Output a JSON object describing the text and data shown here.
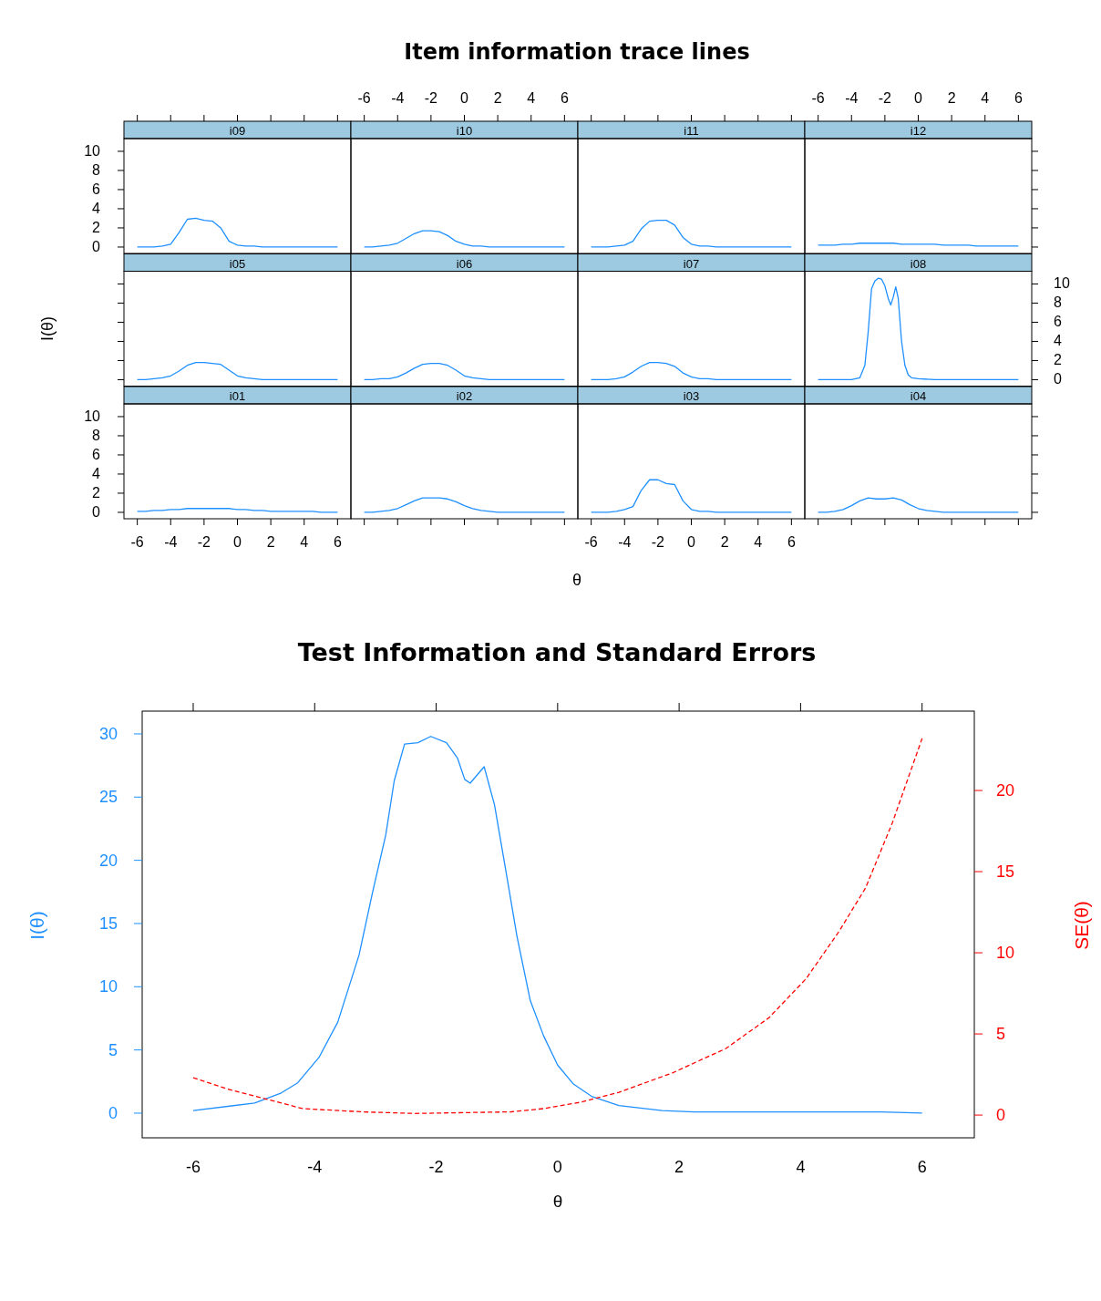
{
  "chart_data": [
    {
      "type": "line",
      "annotations": [
        "Item information trace lines"
      ],
      "subtitle": "i09",
      "xlim": [
        -6.8,
        6.8
      ],
      "ylim": [
        -0.67,
        11.33
      ],
      "xticks": [
        -6,
        -4,
        -2,
        0,
        2,
        4,
        6
      ],
      "yticks": [
        0,
        2,
        4,
        6,
        8,
        10
      ],
      "tick_labels": "y",
      "x": [
        -6,
        -5.5,
        -5,
        -4.5,
        -4,
        -3.5,
        -3,
        -2.5,
        -2,
        -1.5,
        -1,
        -0.5,
        0,
        0.5,
        1,
        1.5,
        2,
        2.5,
        3,
        3.5,
        4,
        4.5,
        5,
        5.5,
        6
      ],
      "series": [
        {
          "color": "#1e90ff",
          "values": [
            0,
            0,
            0,
            0.1,
            0.3,
            1.5,
            2.9,
            3.0,
            2.8,
            2.7,
            2.0,
            0.6,
            0.2,
            0.1,
            0.1,
            0,
            0,
            0,
            0,
            0,
            0,
            0,
            0,
            0,
            0
          ]
        }
      ]
    },
    {
      "type": "line",
      "subtitle": "i10",
      "xlim": [
        -6.8,
        6.8
      ],
      "ylim": [
        -0.67,
        11.33
      ],
      "xticks": [
        -6,
        -4,
        -2,
        0,
        2,
        4,
        6
      ],
      "yticks": [
        0,
        2,
        4,
        6,
        8,
        10
      ],
      "tick_labels": "x",
      "x": [
        -6,
        -5.5,
        -5,
        -4.5,
        -4,
        -3.5,
        -3,
        -2.5,
        -2,
        -1.5,
        -1,
        -0.5,
        0,
        0.5,
        1,
        1.5,
        2,
        2.5,
        3,
        3.5,
        4,
        4.5,
        5,
        5.5,
        6
      ],
      "series": [
        {
          "color": "#1e90ff",
          "values": [
            0,
            0,
            0.1,
            0.2,
            0.4,
            0.9,
            1.4,
            1.7,
            1.7,
            1.6,
            1.2,
            0.6,
            0.3,
            0.1,
            0.1,
            0,
            0,
            0,
            0,
            0,
            0,
            0,
            0,
            0,
            0
          ]
        }
      ]
    },
    {
      "type": "line",
      "subtitle": "i11",
      "xlim": [
        -6.8,
        6.8
      ],
      "ylim": [
        -0.67,
        11.33
      ],
      "xticks": [
        -6,
        -4,
        -2,
        0,
        2,
        4,
        6
      ],
      "yticks": [
        0,
        2,
        4,
        6,
        8,
        10
      ],
      "tick_labels": false,
      "x": [
        -6,
        -5.5,
        -5,
        -4.5,
        -4,
        -3.5,
        -3,
        -2.5,
        -2,
        -1.5,
        -1,
        -0.5,
        0,
        0.5,
        1,
        1.5,
        2,
        2.5,
        3,
        3.5,
        4,
        4.5,
        5,
        5.5,
        6
      ],
      "series": [
        {
          "color": "#1e90ff",
          "values": [
            0,
            0,
            0,
            0.1,
            0.2,
            0.6,
            1.9,
            2.7,
            2.8,
            2.8,
            2.3,
            1.0,
            0.3,
            0.1,
            0.1,
            0,
            0,
            0,
            0,
            0,
            0,
            0,
            0,
            0,
            0
          ]
        }
      ]
    },
    {
      "type": "line",
      "subtitle": "i12",
      "xlim": [
        -6.8,
        6.8
      ],
      "ylim": [
        -0.67,
        11.33
      ],
      "xticks": [
        -6,
        -4,
        -2,
        0,
        2,
        4,
        6
      ],
      "yticks": [
        0,
        2,
        4,
        6,
        8,
        10
      ],
      "tick_labels": "x",
      "x": [
        -6,
        -5.5,
        -5,
        -4.5,
        -4,
        -3.5,
        -3,
        -2.5,
        -2,
        -1.5,
        -1,
        -0.5,
        0,
        0.5,
        1,
        1.5,
        2,
        2.5,
        3,
        3.5,
        4,
        4.5,
        5,
        5.5,
        6
      ],
      "series": [
        {
          "color": "#1e90ff",
          "values": [
            0.2,
            0.2,
            0.2,
            0.3,
            0.3,
            0.4,
            0.4,
            0.4,
            0.4,
            0.4,
            0.3,
            0.3,
            0.3,
            0.3,
            0.3,
            0.2,
            0.2,
            0.2,
            0.2,
            0.1,
            0.1,
            0.1,
            0.1,
            0.1,
            0.1
          ]
        }
      ]
    },
    {
      "type": "line",
      "subtitle": "i05",
      "ylabel": "I(θ)",
      "xlim": [
        -6.8,
        6.8
      ],
      "ylim": [
        -0.67,
        11.33
      ],
      "xticks": [
        -6,
        -4,
        -2,
        0,
        2,
        4,
        6
      ],
      "yticks": [
        0,
        2,
        4,
        6,
        8,
        10
      ],
      "tick_labels": false,
      "x": [
        -6,
        -5.5,
        -5,
        -4.5,
        -4,
        -3.5,
        -3,
        -2.5,
        -2,
        -1.5,
        -1,
        -0.5,
        0,
        0.5,
        1,
        1.5,
        2,
        2.5,
        3,
        3.5,
        4,
        4.5,
        5,
        5.5,
        6
      ],
      "series": [
        {
          "color": "#1e90ff",
          "values": [
            0,
            0,
            0.1,
            0.2,
            0.4,
            0.9,
            1.5,
            1.8,
            1.8,
            1.7,
            1.6,
            1.0,
            0.4,
            0.2,
            0.1,
            0,
            0,
            0,
            0,
            0,
            0,
            0,
            0,
            0,
            0
          ]
        }
      ]
    },
    {
      "type": "line",
      "subtitle": "i06",
      "xlim": [
        -6.8,
        6.8
      ],
      "ylim": [
        -0.67,
        11.33
      ],
      "xticks": [
        -6,
        -4,
        -2,
        0,
        2,
        4,
        6
      ],
      "yticks": [
        0,
        2,
        4,
        6,
        8,
        10
      ],
      "tick_labels": false,
      "x": [
        -6,
        -5.5,
        -5,
        -4.5,
        -4,
        -3.5,
        -3,
        -2.5,
        -2,
        -1.5,
        -1,
        -0.5,
        0,
        0.5,
        1,
        1.5,
        2,
        2.5,
        3,
        3.5,
        4,
        4.5,
        5,
        5.5,
        6
      ],
      "series": [
        {
          "color": "#1e90ff",
          "values": [
            0,
            0,
            0.1,
            0.1,
            0.3,
            0.7,
            1.2,
            1.6,
            1.7,
            1.7,
            1.5,
            1.0,
            0.4,
            0.2,
            0.1,
            0,
            0,
            0,
            0,
            0,
            0,
            0,
            0,
            0,
            0
          ]
        }
      ]
    },
    {
      "type": "line",
      "subtitle": "i07",
      "xlim": [
        -6.8,
        6.8
      ],
      "ylim": [
        -0.67,
        11.33
      ],
      "xticks": [
        -6,
        -4,
        -2,
        0,
        2,
        4,
        6
      ],
      "yticks": [
        0,
        2,
        4,
        6,
        8,
        10
      ],
      "tick_labels": false,
      "x": [
        -6,
        -5.5,
        -5,
        -4.5,
        -4,
        -3.5,
        -3,
        -2.5,
        -2,
        -1.5,
        -1,
        -0.5,
        0,
        0.5,
        1,
        1.5,
        2,
        2.5,
        3,
        3.5,
        4,
        4.5,
        5,
        5.5,
        6
      ],
      "series": [
        {
          "color": "#1e90ff",
          "values": [
            0,
            0,
            0,
            0.1,
            0.3,
            0.8,
            1.4,
            1.8,
            1.8,
            1.7,
            1.4,
            0.7,
            0.3,
            0.1,
            0.1,
            0,
            0,
            0,
            0,
            0,
            0,
            0,
            0,
            0,
            0
          ]
        }
      ]
    },
    {
      "type": "line",
      "subtitle": "i08",
      "xlim": [
        -6.8,
        6.8
      ],
      "ylim": [
        -0.67,
        11.33
      ],
      "xticks": [
        -6,
        -4,
        -2,
        0,
        2,
        4,
        6
      ],
      "yticks": [
        0,
        2,
        4,
        6,
        8,
        10
      ],
      "tick_labels": "y",
      "x": [
        -6,
        -5,
        -4,
        -3.5,
        -3.2,
        -3,
        -2.8,
        -2.6,
        -2.4,
        -2.2,
        -2,
        -1.8,
        -1.65,
        -1.5,
        -1.35,
        -1.2,
        -1,
        -0.8,
        -0.6,
        -0.4,
        0,
        1,
        2,
        3,
        4,
        5,
        6
      ],
      "series": [
        {
          "color": "#1e90ff",
          "values": [
            0,
            0,
            0,
            0.2,
            1.5,
            5,
            9.5,
            10.3,
            10.6,
            10.5,
            9.8,
            8.5,
            7.8,
            8.6,
            9.7,
            8.5,
            4,
            1.5,
            0.5,
            0.2,
            0.1,
            0,
            0,
            0,
            0,
            0,
            0
          ]
        }
      ]
    },
    {
      "type": "line",
      "subtitle": "i01",
      "xlim": [
        -6.8,
        6.8
      ],
      "ylim": [
        -0.67,
        11.33
      ],
      "xticks": [
        -6,
        -4,
        -2,
        0,
        2,
        4,
        6
      ],
      "yticks": [
        0,
        2,
        4,
        6,
        8,
        10
      ],
      "x": [
        -6,
        -5.5,
        -5,
        -4.5,
        -4,
        -3.5,
        -3,
        -2.5,
        -2,
        -1.5,
        -1,
        -0.5,
        0,
        0.5,
        1,
        1.5,
        2,
        2.5,
        3,
        3.5,
        4,
        4.5,
        5,
        5.5,
        6
      ],
      "series": [
        {
          "color": "#1e90ff",
          "values": [
            0.1,
            0.1,
            0.2,
            0.2,
            0.3,
            0.3,
            0.4,
            0.4,
            0.4,
            0.4,
            0.4,
            0.4,
            0.3,
            0.3,
            0.2,
            0.2,
            0.1,
            0.1,
            0.1,
            0.1,
            0.1,
            0.1,
            0,
            0,
            0
          ]
        }
      ]
    },
    {
      "type": "line",
      "subtitle": "i02",
      "xlabel": "θ",
      "xlim": [
        -6.8,
        6.8
      ],
      "ylim": [
        -0.67,
        11.33
      ],
      "xticks": [
        -6,
        -4,
        -2,
        0,
        2,
        4,
        6
      ],
      "yticks": [
        0,
        2,
        4,
        6,
        8,
        10
      ],
      "tick_labels": false,
      "x": [
        -6,
        -5.5,
        -5,
        -4.5,
        -4,
        -3.5,
        -3,
        -2.5,
        -2,
        -1.5,
        -1,
        -0.5,
        0,
        0.5,
        1,
        1.5,
        2,
        2.5,
        3,
        3.5,
        4,
        4.5,
        5,
        5.5,
        6
      ],
      "series": [
        {
          "color": "#1e90ff",
          "values": [
            0,
            0,
            0.1,
            0.2,
            0.4,
            0.8,
            1.2,
            1.5,
            1.5,
            1.5,
            1.4,
            1.1,
            0.7,
            0.4,
            0.2,
            0.1,
            0,
            0,
            0,
            0,
            0,
            0,
            0,
            0,
            0
          ]
        }
      ]
    },
    {
      "type": "line",
      "subtitle": "i03",
      "xlim": [
        -6.8,
        6.8
      ],
      "ylim": [
        -0.67,
        11.33
      ],
      "xticks": [
        -6,
        -4,
        -2,
        0,
        2,
        4,
        6
      ],
      "yticks": [
        0,
        2,
        4,
        6,
        8,
        10
      ],
      "tick_labels": "x",
      "x": [
        -6,
        -5.5,
        -5,
        -4.5,
        -4,
        -3.5,
        -3,
        -2.5,
        -2,
        -1.5,
        -1,
        -0.5,
        0,
        0.5,
        1,
        1.5,
        2,
        2.5,
        3,
        3.5,
        4,
        4.5,
        5,
        5.5,
        6
      ],
      "series": [
        {
          "color": "#1e90ff",
          "values": [
            0,
            0,
            0,
            0.1,
            0.3,
            0.6,
            2.3,
            3.4,
            3.4,
            3.0,
            2.9,
            1.2,
            0.3,
            0.1,
            0.1,
            0,
            0,
            0,
            0,
            0,
            0,
            0,
            0,
            0,
            0
          ]
        }
      ]
    },
    {
      "type": "line",
      "subtitle": "i04",
      "xlim": [
        -6.8,
        6.8
      ],
      "ylim": [
        -0.67,
        11.33
      ],
      "xticks": [
        -6,
        -4,
        -2,
        0,
        2,
        4,
        6
      ],
      "yticks": [
        0,
        2,
        4,
        6,
        8,
        10
      ],
      "tick_labels": false,
      "x": [
        -6,
        -5.5,
        -5,
        -4.5,
        -4,
        -3.5,
        -3,
        -2.5,
        -2,
        -1.5,
        -1,
        -0.5,
        0,
        0.5,
        1,
        1.5,
        2,
        2.5,
        3,
        3.5,
        4,
        4.5,
        5,
        5.5,
        6
      ],
      "series": [
        {
          "color": "#1e90ff",
          "values": [
            0,
            0,
            0.1,
            0.3,
            0.7,
            1.2,
            1.5,
            1.4,
            1.4,
            1.5,
            1.3,
            0.8,
            0.4,
            0.2,
            0.1,
            0,
            0,
            0,
            0,
            0,
            0,
            0,
            0,
            0,
            0
          ]
        }
      ]
    },
    {
      "type": "line",
      "title": "Test Information and Standard Errors",
      "xlabel": "θ",
      "ylabel": "I(θ)",
      "y2label": "SE(θ)",
      "xlim": [
        -6.84,
        6.86
      ],
      "ylim": [
        -1.95,
        31.8
      ],
      "y2lim": [
        -1.4,
        24.89
      ],
      "xticks": [
        -6,
        -4,
        -2,
        0,
        2,
        4,
        6
      ],
      "yticks": [
        0,
        5,
        10,
        15,
        20,
        25,
        30
      ],
      "y2ticks": [
        0,
        5,
        10,
        15,
        20
      ],
      "series": [
        {
          "color": "#1e90ff",
          "x": [
            -6,
            -4.99,
            -4.55,
            -4.28,
            -3.93,
            -3.62,
            -3.27,
            -3.05,
            -2.83,
            -2.69,
            -2.52,
            -2.3,
            -2.09,
            -1.83,
            -1.65,
            -1.53,
            -1.44,
            -1.21,
            -1.04,
            -0.85,
            -0.67,
            -0.45,
            -0.23,
            0,
            0.26,
            0.57,
            1.01,
            1.72,
            2.25,
            5.33,
            6
          ],
          "values": [
            0.2,
            0.8,
            1.6,
            2.4,
            4.4,
            7.2,
            12.5,
            17.4,
            22,
            26.3,
            29.2,
            29.3,
            29.8,
            29.3,
            28.1,
            26.4,
            26.1,
            27.4,
            24.4,
            19.1,
            14,
            8.9,
            6.1,
            3.8,
            2.3,
            1.3,
            0.6,
            0.2,
            0.1,
            0.1,
            0
          ]
        },
        {
          "color": "#ff0000",
          "axis": "y2",
          "line_style": "dashed",
          "x": [
            -6,
            -5.43,
            -4.81,
            -4.2,
            -3.22,
            -2.35,
            -0.76,
            -0.23,
            0.39,
            1.01,
            1.89,
            2.77,
            3.48,
            4.09,
            4.63,
            5.07,
            5.51,
            6
          ],
          "values": [
            2.3,
            1.6,
            1,
            0.4,
            0.2,
            0.1,
            0.2,
            0.4,
            0.8,
            1.4,
            2.6,
            4.1,
            6,
            8.4,
            11.3,
            14,
            18,
            23.2
          ]
        }
      ]
    }
  ]
}
